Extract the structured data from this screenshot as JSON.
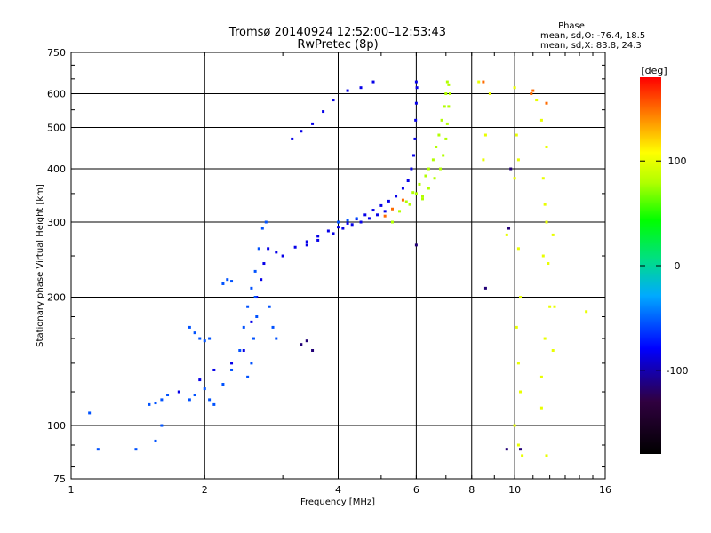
{
  "chart_data": {
    "type": "scatter",
    "title": "Tromsø 20140924 12:52:00–12:53:43",
    "subtitle": "RwPretec (8p)",
    "stats": {
      "header": "Phase",
      "line1": "mean, sd,O: -76.4, 18.5",
      "line2": "mean, sd,X:  83.8, 24.3"
    },
    "xlabel": "Frequency [MHz]",
    "ylabel": "Stationary phase Virtual Height [km]",
    "x_scale": "log",
    "y_scale": "log",
    "xlim": [
      1,
      16
    ],
    "ylim": [
      75,
      750
    ],
    "xticks": [
      1,
      2,
      4,
      6,
      8,
      10,
      16
    ],
    "yticks": [
      75,
      100,
      200,
      300,
      400,
      500,
      600,
      750
    ],
    "grid": true,
    "colorbar": {
      "label": "[deg]",
      "range": [
        -180,
        180
      ],
      "ticks": [
        100,
        0,
        -100
      ]
    },
    "series": [
      {
        "color_phase": -85,
        "points": [
          [
            1.75,
            120
          ],
          [
            1.95,
            128
          ],
          [
            2.1,
            135
          ],
          [
            2.3,
            140
          ],
          [
            2.45,
            150
          ],
          [
            2.55,
            175
          ],
          [
            2.62,
            200
          ],
          [
            2.68,
            220
          ],
          [
            2.72,
            240
          ],
          [
            2.78,
            260
          ],
          [
            2.9,
            255
          ],
          [
            3.0,
            250
          ],
          [
            3.2,
            262
          ],
          [
            3.4,
            270
          ],
          [
            3.6,
            278
          ],
          [
            3.8,
            286
          ],
          [
            4.0,
            292
          ],
          [
            4.2,
            298
          ],
          [
            4.4,
            305
          ],
          [
            4.6,
            312
          ],
          [
            4.8,
            320
          ],
          [
            5.0,
            328
          ],
          [
            5.2,
            336
          ],
          [
            5.4,
            345
          ],
          [
            5.6,
            360
          ],
          [
            5.75,
            375
          ],
          [
            5.85,
            400
          ],
          [
            5.92,
            430
          ],
          [
            5.96,
            470
          ],
          [
            5.98,
            520
          ],
          [
            6.0,
            570
          ],
          [
            6.02,
            620
          ],
          [
            6.0,
            640
          ],
          [
            3.4,
            265
          ],
          [
            3.6,
            272
          ],
          [
            3.9,
            282
          ],
          [
            4.1,
            290
          ],
          [
            4.3,
            296
          ],
          [
            4.5,
            300
          ],
          [
            4.7,
            306
          ],
          [
            4.9,
            312
          ],
          [
            5.1,
            318
          ],
          [
            3.15,
            470
          ],
          [
            3.3,
            490
          ],
          [
            3.5,
            510
          ],
          [
            3.7,
            545
          ],
          [
            3.9,
            580
          ],
          [
            4.2,
            610
          ],
          [
            4.5,
            620
          ],
          [
            4.8,
            640
          ]
        ]
      },
      {
        "color_phase": -55,
        "points": [
          [
            1.1,
            107
          ],
          [
            1.5,
            112
          ],
          [
            1.55,
            113
          ],
          [
            1.6,
            115
          ],
          [
            1.65,
            118
          ],
          [
            1.85,
            115
          ],
          [
            1.9,
            118
          ],
          [
            2.0,
            122
          ],
          [
            2.05,
            115
          ],
          [
            2.1,
            112
          ],
          [
            2.2,
            125
          ],
          [
            2.3,
            135
          ],
          [
            2.4,
            150
          ],
          [
            2.45,
            170
          ],
          [
            2.5,
            190
          ],
          [
            2.55,
            210
          ],
          [
            2.6,
            230
          ],
          [
            2.65,
            260
          ],
          [
            2.7,
            290
          ],
          [
            2.75,
            300
          ],
          [
            2.6,
            200
          ],
          [
            2.62,
            180
          ],
          [
            2.58,
            160
          ],
          [
            2.55,
            140
          ],
          [
            2.5,
            130
          ],
          [
            1.85,
            170
          ],
          [
            1.9,
            165
          ],
          [
            1.95,
            160
          ],
          [
            2.0,
            158
          ],
          [
            2.05,
            160
          ],
          [
            2.2,
            215
          ],
          [
            2.25,
            220
          ],
          [
            2.3,
            218
          ],
          [
            2.8,
            190
          ],
          [
            2.85,
            170
          ],
          [
            2.9,
            160
          ],
          [
            1.15,
            88
          ],
          [
            1.4,
            88
          ],
          [
            1.55,
            92
          ],
          [
            1.6,
            100
          ],
          [
            4.0,
            300
          ],
          [
            4.2,
            303
          ],
          [
            4.4,
            306
          ]
        ]
      },
      {
        "color_phase": 80,
        "points": [
          [
            5.3,
            300
          ],
          [
            5.5,
            318
          ],
          [
            5.7,
            335
          ],
          [
            5.9,
            352
          ],
          [
            6.1,
            368
          ],
          [
            6.3,
            385
          ],
          [
            6.4,
            400
          ],
          [
            6.55,
            420
          ],
          [
            6.65,
            450
          ],
          [
            6.75,
            480
          ],
          [
            6.85,
            520
          ],
          [
            6.95,
            560
          ],
          [
            7.0,
            600
          ],
          [
            7.05,
            640
          ],
          [
            6.2,
            345
          ],
          [
            6.4,
            360
          ],
          [
            6.6,
            380
          ],
          [
            6.8,
            400
          ],
          [
            6.9,
            430
          ],
          [
            7.0,
            470
          ],
          [
            7.05,
            510
          ],
          [
            7.1,
            560
          ],
          [
            7.15,
            600
          ],
          [
            7.1,
            630
          ],
          [
            5.8,
            330
          ],
          [
            6.0,
            350
          ],
          [
            6.2,
            340
          ]
        ]
      },
      {
        "color_phase": 100,
        "points": [
          [
            8.3,
            640
          ],
          [
            8.5,
            420
          ],
          [
            8.6,
            480
          ],
          [
            8.8,
            600
          ],
          [
            9.6,
            280
          ],
          [
            10.0,
            620
          ],
          [
            10.1,
            480
          ],
          [
            10.2,
            420
          ],
          [
            10.0,
            380
          ],
          [
            10.2,
            260
          ],
          [
            10.3,
            200
          ],
          [
            10.1,
            170
          ],
          [
            10.2,
            140
          ],
          [
            10.3,
            120
          ],
          [
            10.0,
            100
          ],
          [
            10.2,
            90
          ],
          [
            10.4,
            85
          ],
          [
            11.2,
            580
          ],
          [
            11.5,
            520
          ],
          [
            11.8,
            450
          ],
          [
            11.6,
            380
          ],
          [
            11.7,
            330
          ],
          [
            11.8,
            300
          ],
          [
            11.6,
            250
          ],
          [
            11.9,
            240
          ],
          [
            12.0,
            190
          ],
          [
            12.3,
            190
          ],
          [
            11.7,
            160
          ],
          [
            12.2,
            150
          ],
          [
            11.5,
            130
          ],
          [
            11.8,
            85
          ],
          [
            11.5,
            110
          ],
          [
            14.5,
            185
          ],
          [
            12.2,
            280
          ]
        ]
      },
      {
        "color_phase": 150,
        "points": [
          [
            5.1,
            310
          ],
          [
            5.3,
            322
          ],
          [
            5.6,
            338
          ],
          [
            10.9,
            600
          ],
          [
            11.0,
            610
          ],
          [
            11.8,
            570
          ],
          [
            8.5,
            640
          ]
        ]
      },
      {
        "color_phase": -115,
        "points": [
          [
            3.3,
            155
          ],
          [
            3.4,
            158
          ],
          [
            3.5,
            150
          ],
          [
            9.8,
            400
          ],
          [
            9.7,
            290
          ],
          [
            9.6,
            88
          ],
          [
            10.3,
            88
          ],
          [
            8.6,
            210
          ],
          [
            6.0,
            265
          ]
        ]
      }
    ]
  }
}
